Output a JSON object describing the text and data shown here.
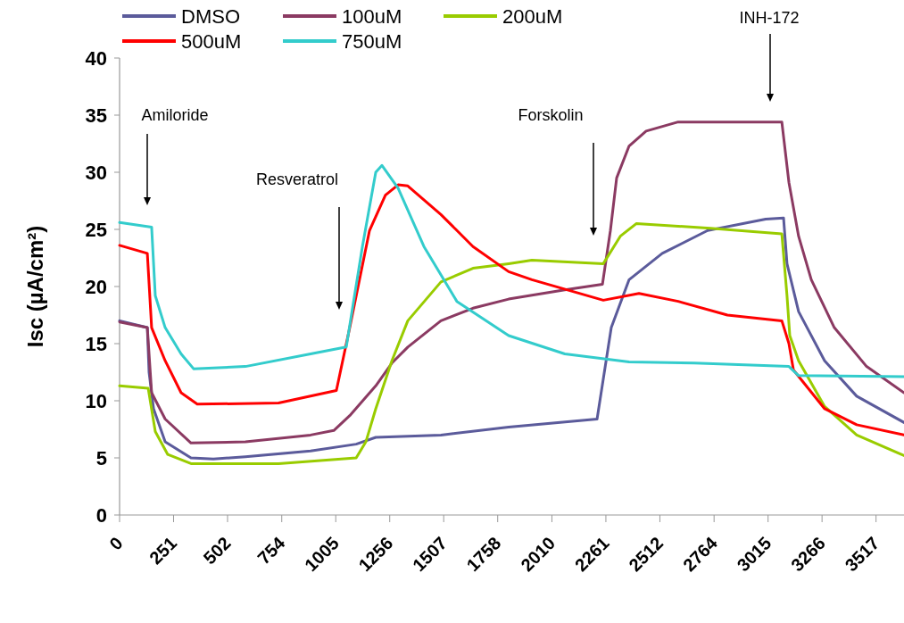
{
  "chart_data": {
    "type": "line",
    "ylabel": "Isc (µA/cm²)",
    "xlim": [
      0,
      3647
    ],
    "xticks": [
      0,
      251,
      502,
      754,
      1005,
      1256,
      1507,
      1758,
      2010,
      2261,
      2512,
      2764,
      3015,
      3266,
      3517
    ],
    "ylim": [
      0,
      40
    ],
    "yticks": [
      0,
      5,
      10,
      15,
      20,
      25,
      30,
      35,
      40
    ],
    "grid": false,
    "legend": "top",
    "marker": "none",
    "line_style": "solid",
    "annotations": [
      "Amiloride",
      "Resveratrol",
      "Forskolin",
      "INH-172"
    ],
    "series": [
      {
        "name": "DMSO",
        "color": "#5b5b9b",
        "x": [
          0,
          129,
          137,
          158,
          212,
          332,
          436,
          585,
          888,
          1100,
          1191,
          1494,
          1809,
          2220,
          2286,
          2369,
          2523,
          2734,
          3004,
          3087,
          3103,
          3157,
          3278,
          3427,
          3647
        ],
        "values": [
          17.0,
          16.4,
          12.5,
          9.3,
          6.4,
          5.0,
          4.9,
          5.1,
          5.6,
          6.2,
          6.8,
          7.0,
          7.7,
          8.4,
          16.4,
          20.6,
          22.9,
          24.9,
          25.9,
          26.0,
          22.0,
          17.8,
          13.5,
          10.4,
          8.1
        ]
      },
      {
        "name": "100uM",
        "color": "#8b3a62",
        "x": [
          0,
          129,
          149,
          212,
          332,
          585,
          888,
          996,
          1070,
          1191,
          1266,
          1340,
          1494,
          1643,
          1809,
          2070,
          2245,
          2282,
          2311,
          2369,
          2448,
          2597,
          3079,
          3112,
          3157,
          3216,
          3323,
          3473,
          3647
        ],
        "values": [
          16.9,
          16.4,
          10.7,
          8.4,
          6.3,
          6.4,
          7.0,
          7.4,
          8.7,
          11.3,
          13.3,
          14.7,
          17.0,
          18.1,
          18.9,
          19.7,
          20.2,
          24.9,
          29.5,
          32.3,
          33.6,
          34.4,
          34.4,
          29.1,
          24.4,
          20.6,
          16.4,
          13.0,
          10.7
        ]
      },
      {
        "name": "200uM",
        "color": "#99cc00",
        "x": [
          0,
          133,
          166,
          224,
          332,
          739,
          1100,
          1145,
          1191,
          1266,
          1340,
          1494,
          1643,
          1809,
          1917,
          2249,
          2328,
          2402,
          2747,
          3079,
          3103,
          3116,
          3157,
          3278,
          3427,
          3647
        ],
        "values": [
          11.3,
          11.1,
          7.3,
          5.3,
          4.5,
          4.5,
          5.0,
          6.4,
          9.3,
          13.5,
          17.0,
          20.4,
          21.6,
          22.0,
          22.3,
          22.0,
          24.4,
          25.5,
          25.1,
          24.6,
          19.2,
          15.7,
          13.5,
          9.5,
          7.0,
          5.2
        ]
      },
      {
        "name": "500uM",
        "color": "#ff0000",
        "x": [
          0,
          129,
          149,
          212,
          286,
          361,
          739,
          1008,
          1070,
          1162,
          1236,
          1295,
          1340,
          1494,
          1643,
          1809,
          1917,
          2249,
          2415,
          2597,
          2826,
          3079,
          3112,
          3133,
          3278,
          3427,
          3647
        ],
        "values": [
          23.6,
          22.9,
          16.4,
          13.5,
          10.7,
          9.7,
          9.8,
          10.9,
          16.4,
          24.9,
          28.0,
          28.9,
          28.8,
          26.3,
          23.5,
          21.3,
          20.6,
          18.8,
          19.4,
          18.7,
          17.5,
          17.0,
          15.0,
          12.7,
          9.3,
          7.9,
          7.0
        ]
      },
      {
        "name": "750uM",
        "color": "#33cccc",
        "x": [
          0,
          149,
          166,
          212,
          286,
          344,
          585,
          888,
          1054,
          1129,
          1191,
          1220,
          1295,
          1415,
          1568,
          1809,
          2070,
          2369,
          2672,
          3112,
          3157,
          3647
        ],
        "values": [
          25.6,
          25.2,
          19.2,
          16.4,
          14.1,
          12.8,
          13.0,
          14.1,
          14.7,
          23.5,
          30.0,
          30.6,
          28.6,
          23.5,
          18.7,
          15.7,
          14.1,
          13.4,
          13.3,
          13.0,
          12.2,
          12.1
        ]
      }
    ]
  }
}
